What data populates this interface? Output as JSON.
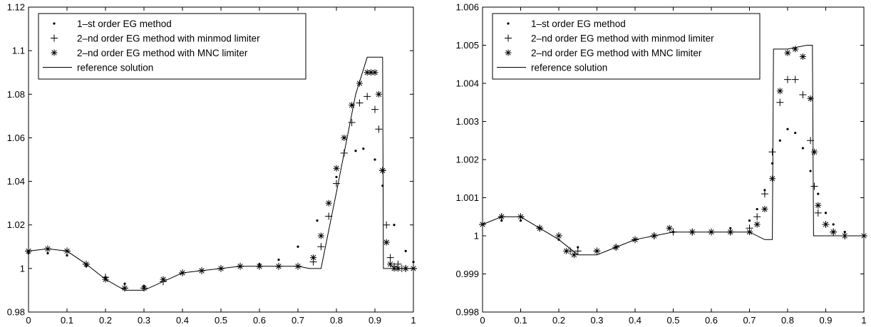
{
  "chart_data": [
    {
      "type": "scatter",
      "xlim": [
        0,
        1
      ],
      "ylim": [
        0.98,
        1.12
      ],
      "x_ticks": [
        "0",
        "0.1",
        "0.2",
        "0.3",
        "0.4",
        "0.5",
        "0.6",
        "0.7",
        "0.8",
        "0.9",
        "1"
      ],
      "y_ticks": [
        "0.98",
        "1",
        "1.02",
        "1.04",
        "1.06",
        "1.08",
        "1.1",
        "1.12"
      ],
      "grid": false,
      "legend_position": "top-left",
      "series": [
        {
          "name": "1–st order EG method",
          "marker": "dot",
          "x": [
            0.0,
            0.05,
            0.1,
            0.15,
            0.2,
            0.25,
            0.3,
            0.35,
            0.4,
            0.45,
            0.5,
            0.55,
            0.6,
            0.65,
            0.7,
            0.75,
            0.8,
            0.85,
            0.87,
            0.9,
            0.92,
            0.95,
            0.98,
            1.0
          ],
          "y": [
            1.007,
            1.007,
            1.006,
            1.001,
            0.996,
            0.993,
            0.992,
            0.995,
            0.998,
            0.999,
            1.0,
            1.001,
            1.002,
            1.004,
            1.01,
            1.022,
            1.042,
            1.054,
            1.055,
            1.05,
            1.038,
            1.02,
            1.008,
            1.003
          ]
        },
        {
          "name": "2–nd order EG method with minmod limiter",
          "marker": "plus",
          "x": [
            0.0,
            0.05,
            0.1,
            0.15,
            0.2,
            0.25,
            0.3,
            0.35,
            0.4,
            0.45,
            0.5,
            0.55,
            0.6,
            0.65,
            0.7,
            0.74,
            0.76,
            0.78,
            0.8,
            0.82,
            0.84,
            0.86,
            0.88,
            0.9,
            0.91,
            0.92,
            0.93,
            0.94,
            0.95,
            0.96,
            0.97,
            0.98,
            1.0
          ],
          "y": [
            1.008,
            1.009,
            1.008,
            1.002,
            0.996,
            0.991,
            0.991,
            0.994,
            0.998,
            0.999,
            1.0,
            1.001,
            1.001,
            1.001,
            1.001,
            1.003,
            1.01,
            1.024,
            1.039,
            1.053,
            1.067,
            1.076,
            1.079,
            1.073,
            1.064,
            1.045,
            1.02,
            1.005,
            1.001,
            1.002,
            1.0,
            1.0,
            1.0
          ]
        },
        {
          "name": "2–nd order EG method with MNC limiter",
          "marker": "asterisk",
          "x": [
            0.0,
            0.05,
            0.1,
            0.15,
            0.2,
            0.25,
            0.3,
            0.35,
            0.4,
            0.45,
            0.5,
            0.55,
            0.6,
            0.65,
            0.7,
            0.74,
            0.76,
            0.78,
            0.8,
            0.82,
            0.84,
            0.86,
            0.88,
            0.89,
            0.9,
            0.91,
            0.92,
            0.93,
            0.94,
            0.95,
            0.96,
            0.98,
            1.0
          ],
          "y": [
            1.008,
            1.009,
            1.008,
            1.002,
            0.995,
            0.991,
            0.991,
            0.995,
            0.998,
            0.999,
            1.0,
            1.001,
            1.001,
            1.001,
            1.001,
            1.005,
            1.015,
            1.03,
            1.046,
            1.06,
            1.075,
            1.085,
            1.09,
            1.09,
            1.09,
            1.08,
            1.045,
            1.012,
            1.002,
            1.0,
            1.0,
            1.0,
            1.0
          ]
        },
        {
          "name": "reference solution",
          "marker": "line",
          "x": [
            0.0,
            0.05,
            0.1,
            0.15,
            0.2,
            0.25,
            0.3,
            0.35,
            0.4,
            0.45,
            0.5,
            0.55,
            0.6,
            0.65,
            0.7,
            0.73,
            0.76,
            0.8,
            0.85,
            0.88,
            0.9,
            0.92,
            0.922,
            0.95,
            1.0
          ],
          "y": [
            1.008,
            1.009,
            1.008,
            1.002,
            0.995,
            0.99,
            0.99,
            0.994,
            0.998,
            0.999,
            1.0,
            1.001,
            1.001,
            1.001,
            1.001,
            1.0,
            1.0,
            1.035,
            1.08,
            1.097,
            1.097,
            1.097,
            1.0,
            1.0,
            1.0
          ]
        }
      ]
    },
    {
      "type": "scatter",
      "xlim": [
        0,
        1
      ],
      "ylim": [
        0.998,
        1.006
      ],
      "x_ticks": [
        "0",
        "0.1",
        "0.2",
        "0.3",
        "0.4",
        "0.5",
        "0.6",
        "0.7",
        "0.8",
        "0.9",
        "1"
      ],
      "y_ticks": [
        "0.998",
        "0.999",
        "1",
        "1.001",
        "1.002",
        "1.003",
        "1.004",
        "1.005",
        "1.006"
      ],
      "grid": false,
      "legend_position": "top-left",
      "series": [
        {
          "name": "1–st order EG method",
          "marker": "dot",
          "x": [
            0.0,
            0.05,
            0.1,
            0.15,
            0.2,
            0.25,
            0.3,
            0.35,
            0.4,
            0.45,
            0.5,
            0.55,
            0.6,
            0.65,
            0.7,
            0.72,
            0.74,
            0.76,
            0.78,
            0.8,
            0.82,
            0.84,
            0.86,
            0.88,
            0.9,
            0.92,
            0.95,
            1.0
          ],
          "y": [
            1.0003,
            1.0004,
            1.0004,
            1.0002,
            0.9999,
            0.9997,
            0.9996,
            0.9997,
            0.9999,
            1.0,
            1.0001,
            1.0001,
            1.0001,
            1.0002,
            1.0004,
            1.0007,
            1.0012,
            1.0019,
            1.0025,
            1.0028,
            1.0027,
            1.0023,
            1.0017,
            1.0011,
            1.0006,
            1.0003,
            1.0001,
            1.0
          ]
        },
        {
          "name": "2–nd order EG method with minmod limiter",
          "marker": "plus",
          "x": [
            0.0,
            0.05,
            0.1,
            0.15,
            0.2,
            0.23,
            0.25,
            0.3,
            0.35,
            0.4,
            0.45,
            0.5,
            0.55,
            0.6,
            0.65,
            0.7,
            0.72,
            0.74,
            0.76,
            0.78,
            0.8,
            0.82,
            0.84,
            0.86,
            0.87,
            0.88,
            0.9,
            0.92,
            0.95,
            1.0
          ],
          "y": [
            1.0003,
            1.0005,
            1.0005,
            1.0002,
            1.0,
            0.9996,
            0.9996,
            0.9996,
            0.9997,
            0.9999,
            1.0,
            1.0001,
            1.0001,
            1.0001,
            1.0001,
            1.0002,
            1.0005,
            1.0011,
            1.0022,
            1.0035,
            1.0041,
            1.0041,
            1.0037,
            1.0025,
            1.0013,
            1.0006,
            1.0003,
            1.0001,
            1.0,
            1.0
          ]
        },
        {
          "name": "2–nd order EG method with MNC limiter",
          "marker": "asterisk",
          "x": [
            0.0,
            0.05,
            0.1,
            0.15,
            0.2,
            0.22,
            0.24,
            0.3,
            0.35,
            0.4,
            0.45,
            0.49,
            0.55,
            0.6,
            0.65,
            0.7,
            0.72,
            0.74,
            0.76,
            0.78,
            0.8,
            0.82,
            0.84,
            0.86,
            0.87,
            0.88,
            0.9,
            0.92,
            0.95,
            1.0
          ],
          "y": [
            1.0003,
            1.0005,
            1.0005,
            1.0002,
            1.0,
            0.9996,
            0.9995,
            0.9996,
            0.9997,
            0.9999,
            1.0,
            1.0002,
            1.0001,
            1.0001,
            1.0001,
            1.0001,
            1.0003,
            1.0007,
            1.0015,
            1.0038,
            1.0048,
            1.0049,
            1.0047,
            1.0036,
            1.0022,
            1.0008,
            1.0003,
            1.0001,
            1.0,
            1.0
          ]
        },
        {
          "name": "reference solution",
          "marker": "line",
          "x": [
            0.0,
            0.05,
            0.1,
            0.15,
            0.2,
            0.25,
            0.3,
            0.35,
            0.4,
            0.45,
            0.5,
            0.55,
            0.6,
            0.65,
            0.7,
            0.74,
            0.76,
            0.763,
            0.8,
            0.85,
            0.865,
            0.868,
            0.9,
            1.0
          ],
          "y": [
            1.0003,
            1.0005,
            1.0005,
            1.0002,
            0.9999,
            0.9995,
            0.9995,
            0.9997,
            0.9999,
            1.0,
            1.0001,
            1.0001,
            1.0001,
            1.0001,
            1.0001,
            0.9999,
            0.9999,
            1.0049,
            1.0049,
            1.005,
            1.005,
            1.0,
            1.0,
            1.0
          ]
        }
      ]
    }
  ]
}
